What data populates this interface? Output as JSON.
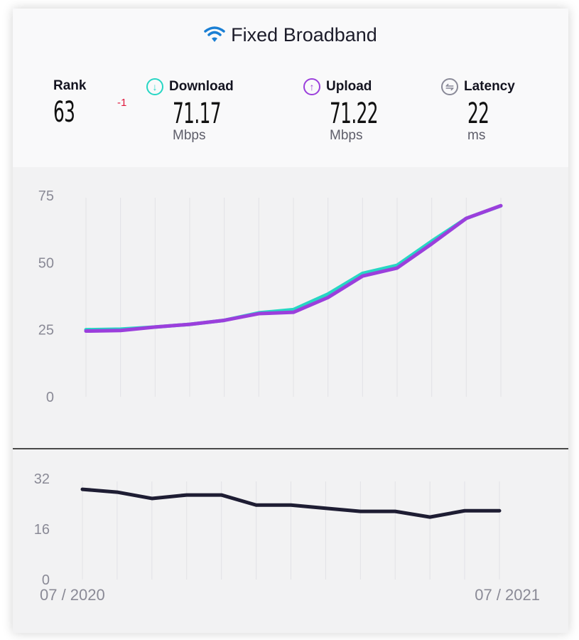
{
  "title": "Fixed Broadband",
  "title_icon": "wifi-icon",
  "metrics": {
    "rank": {
      "label": "Rank",
      "value": "63",
      "delta": "-1"
    },
    "download": {
      "label": "Download",
      "value": "71.17",
      "unit": "Mbps",
      "icon": "arrow-down-circle-icon",
      "color": "#27d6c4"
    },
    "upload": {
      "label": "Upload",
      "value": "71.22",
      "unit": "Mbps",
      "icon": "arrow-up-circle-icon",
      "color": "#9b3fdc"
    },
    "latency": {
      "label": "Latency",
      "value": "22",
      "unit": "ms",
      "icon": "latency-circle-icon",
      "color": "#8a8a98"
    }
  },
  "chart_data": [
    {
      "type": "line",
      "ylim": [
        0,
        75
      ],
      "yticks": [
        "0",
        "25",
        "50",
        "75"
      ],
      "grid": "vertical",
      "series": [
        {
          "color": "#27d6c4",
          "values": [
            25,
            25.2,
            26,
            27,
            28.5,
            31.3,
            32.5,
            38.3,
            46,
            49,
            58,
            66.5,
            71.17
          ]
        },
        {
          "color": "#9b3fdc",
          "values": [
            24.5,
            24.7,
            26,
            27,
            28.5,
            31,
            31.5,
            37,
            45,
            48,
            57,
            66.5,
            71.22
          ]
        }
      ]
    },
    {
      "type": "line",
      "ylim": [
        0,
        32
      ],
      "yticks": [
        "0",
        "16",
        "32"
      ],
      "grid": "vertical",
      "xticks": [
        "07 / 2020",
        "07 / 2021"
      ],
      "series": [
        {
          "color": "#1e1d33",
          "values": [
            28.6,
            27.7,
            25.7,
            26.8,
            26.8,
            23.6,
            23.6,
            22.6,
            21.6,
            21.6,
            19.8,
            21.8,
            21.8
          ]
        }
      ]
    }
  ]
}
